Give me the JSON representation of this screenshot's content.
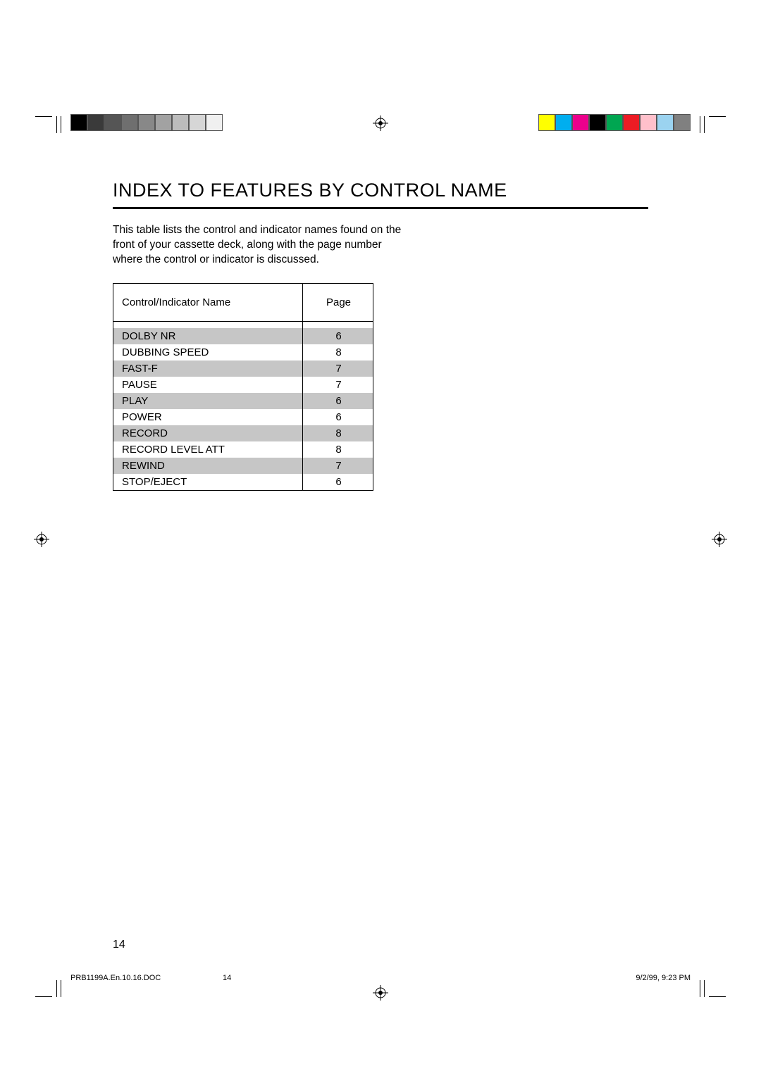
{
  "title": "INDEX TO FEATURES BY CONTROL NAME",
  "intro": "This table lists the control and indicator names found on the front of your cassette deck, along with the page number where the control or indicator is discussed.",
  "table": {
    "headers": {
      "name": "Control/Indicator Name",
      "page": "Page"
    },
    "rows": [
      {
        "name": "DOLBY NR",
        "page": "6",
        "shaded": true
      },
      {
        "name": "DUBBING SPEED",
        "page": "8",
        "shaded": false
      },
      {
        "name": "FAST-F",
        "page": "7",
        "shaded": true
      },
      {
        "name": "PAUSE",
        "page": "7",
        "shaded": false
      },
      {
        "name": "PLAY",
        "page": "6",
        "shaded": true
      },
      {
        "name": "POWER",
        "page": "6",
        "shaded": false
      },
      {
        "name": "RECORD",
        "page": "8",
        "shaded": true
      },
      {
        "name": "RECORD LEVEL ATT",
        "page": "8",
        "shaded": false
      },
      {
        "name": "REWIND",
        "page": "7",
        "shaded": true
      },
      {
        "name": "STOP/EJECT",
        "page": "6",
        "shaded": false
      }
    ]
  },
  "page_number": "14",
  "slug": {
    "doc": "PRB1199A.En.10.16.DOC",
    "page": "14",
    "stamp": "9/2/99, 9:23 PM"
  },
  "colorbars": {
    "left": [
      "#000000",
      "#3a3a3a",
      "#555555",
      "#6f6f6f",
      "#888888",
      "#a2a2a2",
      "#bcbcbc",
      "#d6d6d6",
      "#f0f0f0"
    ],
    "right": [
      "#ffff00",
      "#00aeef",
      "#ec008c",
      "#000000",
      "#00a651",
      "#ed1c24",
      "#ffc0cb",
      "#9bd3f0",
      "#808080"
    ]
  }
}
